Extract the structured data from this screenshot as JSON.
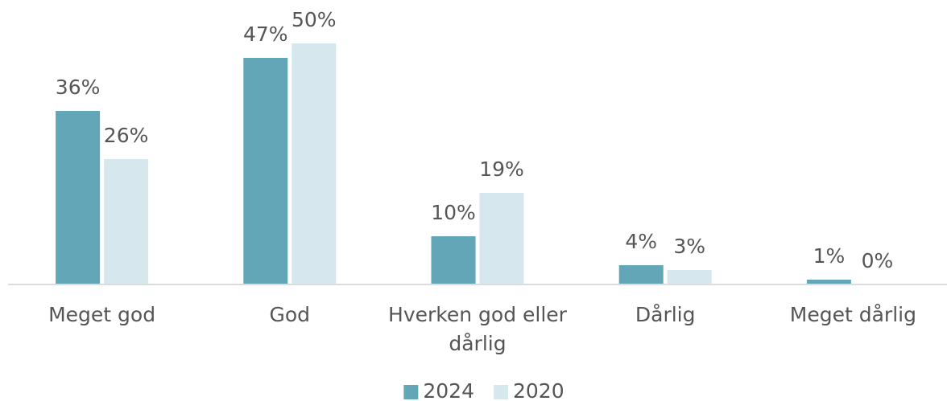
{
  "chart_data": {
    "type": "bar",
    "categories": [
      "Meget god",
      "God",
      "Hverken god eller dårlig",
      "Dårlig",
      "Meget dårlig"
    ],
    "series": [
      {
        "name": "2024",
        "color": "#62a6b8",
        "values": [
          36,
          47,
          10,
          4,
          1
        ],
        "value_labels": [
          "36%",
          "47%",
          "10%",
          "4%",
          "1%"
        ]
      },
      {
        "name": "2020",
        "color": "#d6e8ed",
        "values": [
          26,
          50,
          19,
          3,
          0
        ],
        "value_labels": [
          "26%",
          "50%",
          "19%",
          "3%",
          "0%"
        ]
      }
    ],
    "ylim": [
      0,
      50
    ],
    "legend": "bottom"
  }
}
